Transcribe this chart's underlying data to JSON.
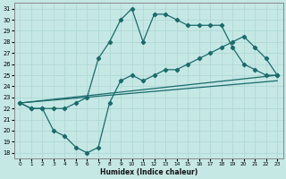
{
  "xlabel": "Humidex (Indice chaleur)",
  "bg_color": "#c5e8e5",
  "grid_color": "#b0d8d5",
  "line_color": "#1a6b6b",
  "xlim": [
    -0.5,
    23.5
  ],
  "ylim": [
    17.5,
    31.5
  ],
  "xticks": [
    0,
    1,
    2,
    3,
    4,
    5,
    6,
    7,
    8,
    9,
    10,
    11,
    12,
    13,
    14,
    15,
    16,
    17,
    18,
    19,
    20,
    21,
    22,
    23
  ],
  "yticks": [
    18,
    19,
    20,
    21,
    22,
    23,
    24,
    25,
    26,
    27,
    28,
    29,
    30,
    31
  ],
  "upper_x": [
    0,
    1,
    2,
    3,
    4,
    5,
    6,
    7,
    8,
    9,
    10,
    11,
    12,
    13,
    14,
    15,
    16,
    17,
    18,
    19,
    20,
    21,
    22,
    23
  ],
  "upper_y": [
    22.5,
    22.0,
    22.0,
    22.0,
    22.0,
    22.5,
    23.0,
    26.5,
    28.0,
    30.0,
    31.0,
    28.0,
    30.5,
    30.5,
    30.0,
    29.5,
    29.5,
    29.5,
    29.5,
    27.5,
    26.0,
    25.5,
    25.0,
    25.0
  ],
  "lower_x": [
    0,
    1,
    2,
    3,
    4,
    5,
    6,
    7,
    8,
    9,
    10,
    11,
    12,
    13,
    14,
    15,
    16,
    17,
    18,
    19,
    20,
    21,
    22,
    23
  ],
  "lower_y": [
    22.5,
    22.0,
    22.0,
    20.0,
    19.5,
    18.5,
    18.0,
    18.5,
    22.5,
    24.5,
    25.0,
    24.5,
    25.0,
    25.5,
    25.5,
    26.0,
    26.5,
    27.0,
    27.5,
    28.0,
    28.5,
    27.5,
    26.5,
    25.0
  ],
  "line1_x": [
    0,
    23
  ],
  "line1_y": [
    22.5,
    25.0
  ],
  "line2_x": [
    0,
    23
  ],
  "line2_y": [
    22.5,
    24.5
  ]
}
